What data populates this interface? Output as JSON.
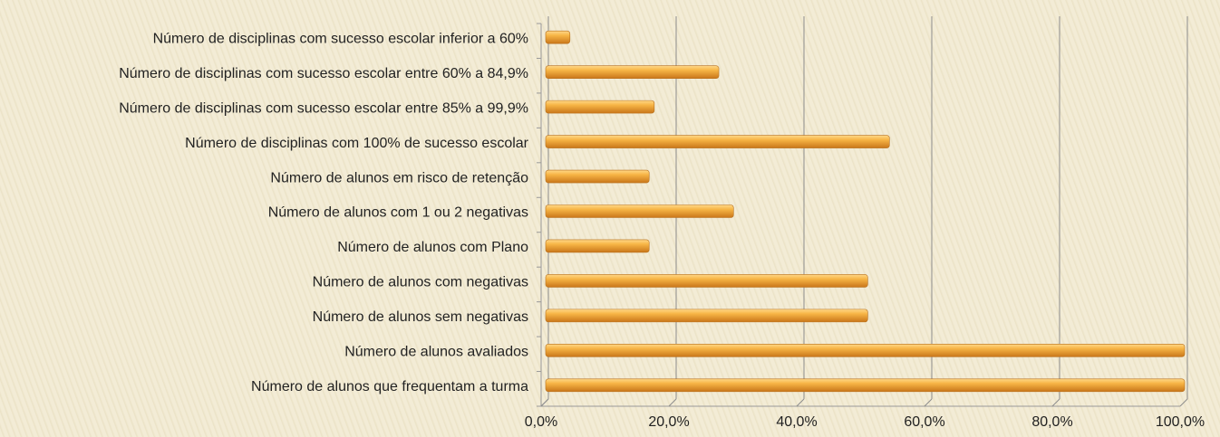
{
  "chart_data": {
    "type": "barh",
    "categories": [
      "Número de disciplinas com sucesso escolar inferior a 60%",
      "Número de disciplinas com sucesso escolar entre 60% a 84,9%",
      "Número de disciplinas com sucesso escolar entre 85% a 99,9%",
      "Número de disciplinas com 100% de sucesso escolar",
      "Número de alunos em risco de retenção",
      "Número de alunos com 1 ou 2 negativas",
      "Número de alunos com Plano",
      "Número de alunos com negativas",
      "Número de alunos sem negativas",
      "Número de alunos avaliados",
      "Número de alunos que frequentam a turma"
    ],
    "values": [
      3.8,
      27.1,
      17.0,
      53.8,
      16.2,
      29.4,
      16.2,
      50.4,
      50.4,
      100,
      100
    ],
    "color": "#f0a22e",
    "xlim": [
      0,
      100
    ],
    "xticks": [
      {
        "value": 0,
        "label": "0,0%"
      },
      {
        "value": 20,
        "label": "20,0%"
      },
      {
        "value": 40,
        "label": "40,0%"
      },
      {
        "value": 60,
        "label": "60,0%"
      },
      {
        "value": 80,
        "label": "80,0%"
      },
      {
        "value": 100,
        "label": "100,0%"
      }
    ],
    "grid": true
  }
}
